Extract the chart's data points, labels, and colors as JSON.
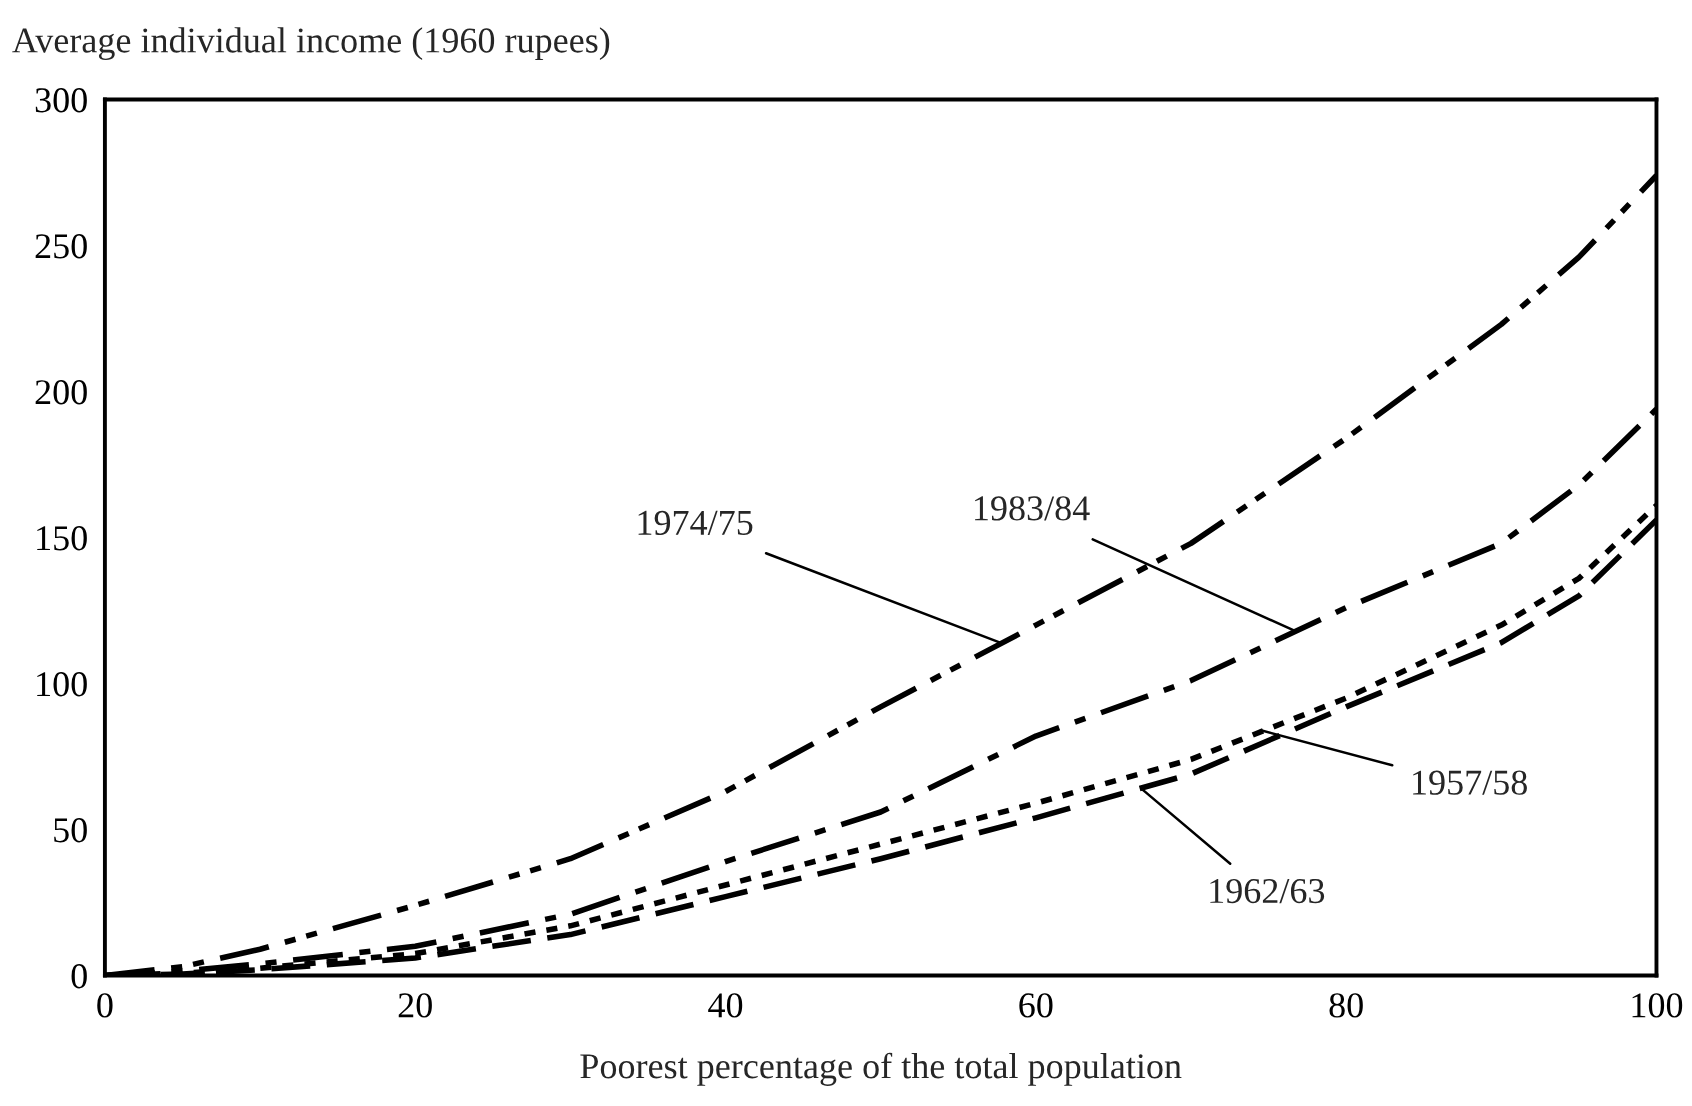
{
  "chart_data": {
    "type": "line",
    "x": [
      0,
      5,
      10,
      20,
      30,
      40,
      50,
      60,
      70,
      80,
      90,
      95,
      100
    ],
    "series": [
      {
        "color": "#000000",
        "line_style": "dashdotdot",
        "values": [
          0,
          3,
          9,
          24,
          40,
          63,
          92,
          120,
          148,
          184,
          223,
          246,
          274
        ]
      },
      {
        "color": "#000000",
        "line_style": "dashdot",
        "values": [
          0,
          1.5,
          4,
          10,
          21,
          39,
          56,
          82,
          101,
          126,
          148,
          168,
          194
        ]
      },
      {
        "color": "#000000",
        "line_style": "dotted",
        "values": [
          0,
          0.8,
          2.5,
          7.5,
          17,
          31,
          45,
          59,
          74,
          95,
          120,
          136,
          161
        ]
      },
      {
        "color": "#000000",
        "line_style": "dashed",
        "values": [
          0,
          0.5,
          2,
          6,
          14,
          27,
          40,
          54,
          69,
          92,
          114,
          130,
          156
        ]
      }
    ],
    "xlabel": "Poorest percentage of the total population",
    "ylabel": "Average individual income (1960 rupees)",
    "xlim": [
      0,
      100
    ],
    "ylim": [
      0,
      300
    ],
    "xticks": [
      0,
      20,
      40,
      60,
      80,
      100
    ],
    "yticks": [
      0,
      50,
      100,
      150,
      200,
      250,
      300
    ],
    "grid": false,
    "legend": false,
    "marker": "none",
    "annotations": [
      {
        "text": "1974/75",
        "x": 57.7,
        "y": 114
      },
      {
        "text": "1983/84",
        "x": 76.7,
        "y": 118
      },
      {
        "text": "1957/58",
        "x": 74.5,
        "y": 84
      },
      {
        "text": "1962/63",
        "x": 66.8,
        "y": 64
      }
    ]
  }
}
